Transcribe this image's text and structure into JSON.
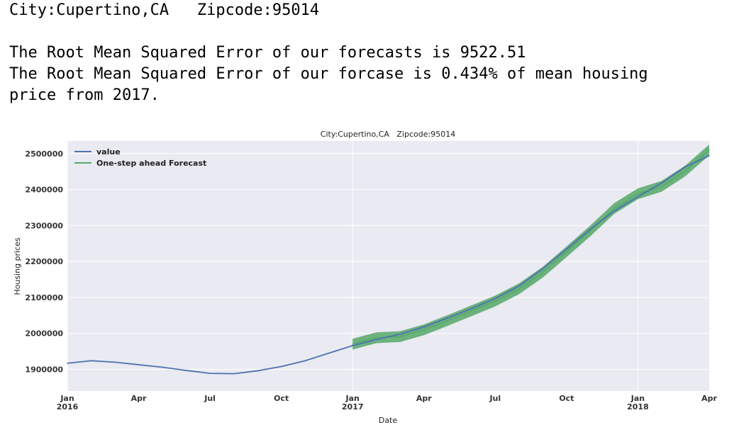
{
  "output": {
    "line1": "City:Cupertino,CA   Zipcode:95014",
    "line2": "The Root Mean Squared Error of our forecasts is 9522.51",
    "line3": "The Root Mean Squared Error of our forcase is 0.434% of mean housing",
    "line4": "price from 2017."
  },
  "chart_data": {
    "type": "line",
    "title": "City:Cupertino,CA   Zipcode:95014",
    "xlabel": "Date",
    "ylabel": "Housing prices",
    "ylim": [
      1840000,
      2535000
    ],
    "y_ticks": [
      1900000,
      2000000,
      2100000,
      2200000,
      2300000,
      2400000,
      2500000
    ],
    "y_tick_labels": [
      "1900000",
      "2000000",
      "2100000",
      "2200000",
      "2300000",
      "2400000",
      "2500000"
    ],
    "x_ticks": [
      {
        "month": "2016-01",
        "label": "Jan",
        "sub": "2016"
      },
      {
        "month": "2016-04",
        "label": "Apr",
        "sub": ""
      },
      {
        "month": "2016-07",
        "label": "Jul",
        "sub": ""
      },
      {
        "month": "2016-10",
        "label": "Oct",
        "sub": ""
      },
      {
        "month": "2017-01",
        "label": "Jan",
        "sub": "2017"
      },
      {
        "month": "2017-04",
        "label": "Apr",
        "sub": ""
      },
      {
        "month": "2017-07",
        "label": "Jul",
        "sub": ""
      },
      {
        "month": "2017-10",
        "label": "Oct",
        "sub": ""
      },
      {
        "month": "2018-01",
        "label": "Jan",
        "sub": "2018"
      },
      {
        "month": "2018-04",
        "label": "Apr",
        "sub": ""
      }
    ],
    "xlim": [
      "2016-01",
      "2018-04"
    ],
    "grid": true,
    "legend": "top-left",
    "series": [
      {
        "name": "value",
        "color": "#4c72b0",
        "points": [
          [
            "2016-01",
            1917000
          ],
          [
            "2016-02",
            1924000
          ],
          [
            "2016-03",
            1920000
          ],
          [
            "2016-04",
            1913000
          ],
          [
            "2016-05",
            1906000
          ],
          [
            "2016-06",
            1897000
          ],
          [
            "2016-07",
            1889000
          ],
          [
            "2016-08",
            1888000
          ],
          [
            "2016-09",
            1896000
          ],
          [
            "2016-10",
            1908000
          ],
          [
            "2016-11",
            1924000
          ],
          [
            "2016-12",
            1945000
          ],
          [
            "2017-01",
            1966000
          ],
          [
            "2017-02",
            1983000
          ],
          [
            "2017-03",
            1998000
          ],
          [
            "2017-04",
            2018000
          ],
          [
            "2017-05",
            2043000
          ],
          [
            "2017-06",
            2069000
          ],
          [
            "2017-07",
            2097000
          ],
          [
            "2017-08",
            2132000
          ],
          [
            "2017-09",
            2180000
          ],
          [
            "2017-10",
            2234000
          ],
          [
            "2017-11",
            2290000
          ],
          [
            "2017-12",
            2340000
          ],
          [
            "2018-01",
            2380000
          ],
          [
            "2018-02",
            2418000
          ],
          [
            "2018-03",
            2463000
          ],
          [
            "2018-04",
            2494000
          ]
        ]
      },
      {
        "name": "One-step ahead Forecast",
        "color": "#55a868",
        "points": [
          [
            "2017-01",
            1970000
          ],
          [
            "2017-02",
            1988000
          ],
          [
            "2017-03",
            1991000
          ],
          [
            "2017-04",
            2010000
          ],
          [
            "2017-05",
            2036000
          ],
          [
            "2017-06",
            2063000
          ],
          [
            "2017-07",
            2090000
          ],
          [
            "2017-08",
            2124000
          ],
          [
            "2017-09",
            2170000
          ],
          [
            "2017-10",
            2227000
          ],
          [
            "2017-11",
            2285000
          ],
          [
            "2017-12",
            2347000
          ],
          [
            "2018-01",
            2388000
          ],
          [
            "2018-02",
            2409000
          ],
          [
            "2018-03",
            2452000
          ],
          [
            "2018-04",
            2510000
          ]
        ],
        "band_halfwidth": 15000
      }
    ]
  }
}
